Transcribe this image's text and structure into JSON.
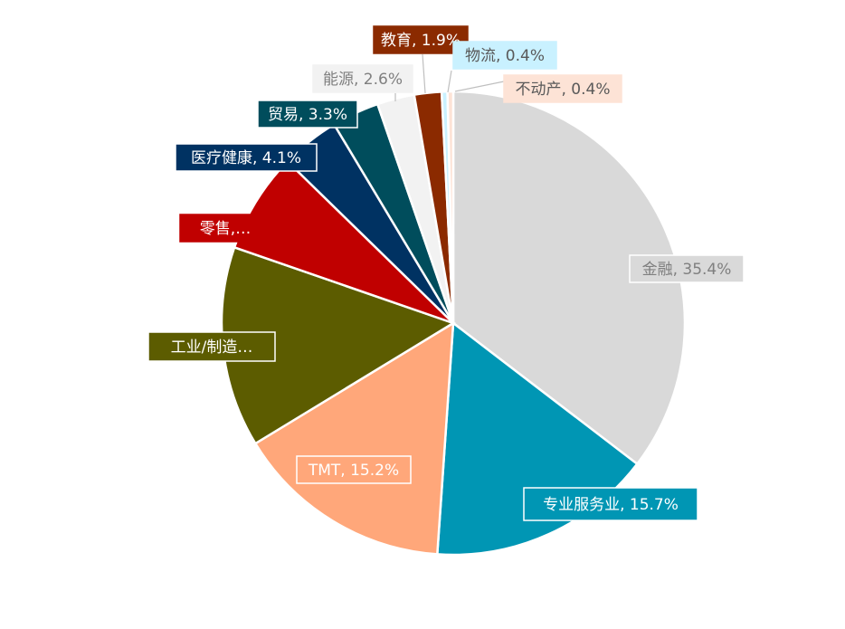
{
  "chart_data": {
    "type": "pie",
    "title": "",
    "start_angle_deg": 0,
    "direction": "clockwise",
    "slices": [
      {
        "name": "金融",
        "value": 35.4,
        "label": "金融, 35.4%",
        "color": "#d9d9d9",
        "label_bg": "#d9d9d9",
        "label_text_color": "#7f7f7f",
        "label_border": "#ffffff"
      },
      {
        "name": "专业服务业",
        "value": 15.7,
        "label": "专业服务业, 15.7%",
        "color": "#0096b4",
        "label_bg": "#0096b4",
        "label_text_color": "#ffffff",
        "label_border": "#ffffff"
      },
      {
        "name": "TMT",
        "value": 15.2,
        "label": "TMT, 15.2%",
        "color": "#ffa77a",
        "label_bg": "#ffa77a",
        "label_text_color": "#ffffff",
        "label_border": "#ffffff"
      },
      {
        "name": "工业/制造",
        "value": 14.0,
        "label": "工业/制造…",
        "color": "#5c5c00",
        "label_bg": "#5c5c00",
        "label_text_color": "#ffffff",
        "label_border": "#ffffff"
      },
      {
        "name": "零售",
        "value": 7.0,
        "label": "零售,…",
        "color": "#c00000",
        "label_bg": "#c00000",
        "label_text_color": "#ffffff",
        "label_border": "#c00000"
      },
      {
        "name": "医疗健康",
        "value": 4.1,
        "label": "医疗健康, 4.1%",
        "color": "#003262",
        "label_bg": "#003262",
        "label_text_color": "#ffffff",
        "label_border": "#ffffff"
      },
      {
        "name": "贸易",
        "value": 3.3,
        "label": "贸易, 3.3%",
        "color": "#004d5c",
        "label_bg": "#004d5c",
        "label_text_color": "#ffffff",
        "label_border": "#ffffff"
      },
      {
        "name": "能源",
        "value": 2.6,
        "label": "能源, 2.6%",
        "color": "#f2f2f2",
        "label_bg": "#f2f2f2",
        "label_text_color": "#7f7f7f",
        "label_border": "#f2f2f2"
      },
      {
        "name": "教育",
        "value": 1.9,
        "label": "教育, 1.9%",
        "color": "#8b2a00",
        "label_bg": "#8b2a00",
        "label_text_color": "#ffffff",
        "label_border": "#8b2a00"
      },
      {
        "name": "物流",
        "value": 0.4,
        "label": "物流, 0.4%",
        "color": "#c9f1ff",
        "label_bg": "#c9f1ff",
        "label_text_color": "#595959",
        "label_border": "#c9f1ff"
      },
      {
        "name": "不动产",
        "value": 0.4,
        "label": "不动产, 0.4%",
        "color": "#fde3d6",
        "label_bg": "#fde3d6",
        "label_text_color": "#595959",
        "label_border": "#fde3d6"
      }
    ]
  }
}
